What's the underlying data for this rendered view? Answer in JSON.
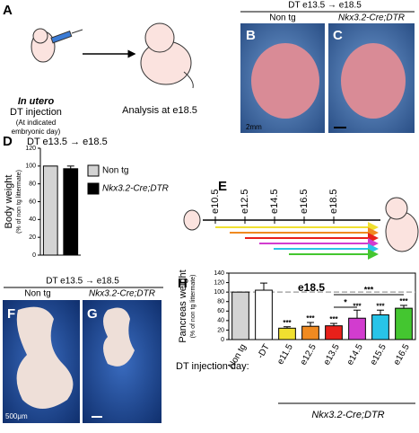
{
  "panels": {
    "A": {
      "label": "A",
      "in_utero": "In utero",
      "injection": "DT injection",
      "note1": "(At indicated",
      "note2": "embryonic day)",
      "analysis": "Analysis at e18.5"
    },
    "BC": {
      "header": "DT e13.5 → e18.5",
      "B": {
        "label": "B",
        "title": "Non tg",
        "scale": "2mm"
      },
      "C": {
        "label": "C",
        "title": "Nkx3.2-Cre;DTR"
      }
    },
    "D": {
      "label": "D"
    },
    "E": {
      "label": "E",
      "days": [
        "e10.5",
        "e12.5",
        "e14.5",
        "e16.5",
        "e18.5"
      ]
    },
    "FG": {
      "header": "DT e13.5 → e18.5",
      "F": {
        "label": "F",
        "title": "Non tg",
        "scale": "500μm"
      },
      "G": {
        "label": "G",
        "title": "Nkx3.2-Cre;DTR"
      }
    },
    "H": {
      "label": "H",
      "xlabel": "DT injection day:",
      "group": "Nkx3.2-Cre;DTR"
    }
  },
  "chart_data": [
    {
      "type": "bar",
      "title": "DT e13.5 → e18.5",
      "ylabel": "Body weight",
      "ylabel_sub": "(% of non tg littermate)",
      "series": [
        {
          "name": "Non tg",
          "color": "#d3d3d3",
          "values": [
            100
          ]
        },
        {
          "name": "Nkx3.2-Cre;DTR",
          "color": "#000000",
          "values": [
            97
          ],
          "errors": [
            3
          ]
        }
      ],
      "ylim": [
        0,
        120
      ],
      "yticks": [
        0,
        20,
        40,
        60,
        80,
        100,
        120
      ]
    },
    {
      "type": "bar",
      "title": "e18.5",
      "ylabel": "Pancreas weight",
      "ylabel_sub": "(% of non tg littermate)",
      "categories": [
        "Non tg",
        "-DT",
        "e11.5",
        "e12.5",
        "e13.5",
        "e14.5",
        "e15.5",
        "e16.5"
      ],
      "values": [
        100,
        104,
        24,
        28,
        29,
        45,
        52,
        66
      ],
      "errors": [
        null,
        15,
        3,
        8,
        5,
        17,
        10,
        6
      ],
      "colors": [
        "#d3d3d3",
        "#ffffff",
        "#f0e030",
        "#f08a20",
        "#e8201a",
        "#d23ccf",
        "#28c4e8",
        "#44c630"
      ],
      "sig": [
        null,
        null,
        "***",
        "***",
        "***",
        "***",
        "***",
        "***"
      ],
      "brackets": [
        {
          "from": "e13.5",
          "to": "e14.5",
          "label": "*"
        },
        {
          "from": "e13.5",
          "to": "e16.5",
          "label": "***"
        }
      ],
      "refline": 100,
      "ylim": [
        0,
        140
      ],
      "yticks": [
        0,
        20,
        40,
        60,
        80,
        100,
        120,
        140
      ]
    }
  ]
}
